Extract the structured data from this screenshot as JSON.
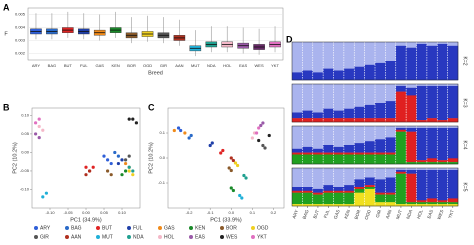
{
  "chart_data": [
    {
      "type": "box",
      "panel_label": "A",
      "x_label": "Breed",
      "y_label": "F",
      "categories": [
        "ARY",
        "BAG",
        "BUT",
        "FUL",
        "GAS",
        "KEN",
        "BOR",
        "OGD",
        "GIR",
        "AAN",
        "MUT",
        "NDA",
        "HOL",
        "EAS",
        "WES",
        "YKT"
      ],
      "colors": [
        "#2f5fd8",
        "#2a6ac8",
        "#e02424",
        "#1f3fa8",
        "#f08a1a",
        "#1a8a2a",
        "#8a5a2a",
        "#f0d020",
        "#555555",
        "#b03020",
        "#20b0d8",
        "#20a090",
        "#f4b8c8",
        "#9a5aa8",
        "#6a2a6a",
        "#e070c0"
      ],
      "whislo": [
        0.0031,
        0.0031,
        0.0032,
        0.0031,
        0.003,
        0.0032,
        0.0028,
        0.0029,
        0.0028,
        0.0026,
        0.0018,
        0.0021,
        0.0021,
        0.002,
        0.0019,
        0.0021
      ],
      "q1": [
        0.0035,
        0.0035,
        0.0036,
        0.0035,
        0.0034,
        0.0036,
        0.0032,
        0.0033,
        0.0032,
        0.003,
        0.0022,
        0.0025,
        0.0025,
        0.0024,
        0.0023,
        0.0025
      ],
      "median": [
        0.0037,
        0.0037,
        0.0038,
        0.0037,
        0.0036,
        0.0038,
        0.0034,
        0.0035,
        0.0034,
        0.0032,
        0.0024,
        0.0027,
        0.0027,
        0.0026,
        0.0025,
        0.0027
      ],
      "q3": [
        0.0039,
        0.0039,
        0.004,
        0.0039,
        0.0038,
        0.004,
        0.0036,
        0.0037,
        0.0036,
        0.0034,
        0.0026,
        0.0029,
        0.0029,
        0.0028,
        0.0027,
        0.0029
      ],
      "whishi": [
        0.0051,
        0.0051,
        0.0052,
        0.0051,
        0.005,
        0.0052,
        0.0048,
        0.0049,
        0.0048,
        0.0046,
        0.0038,
        0.0041,
        0.0041,
        0.004,
        0.0039,
        0.0041
      ],
      "ylim": [
        0.0015,
        0.0055
      ],
      "yticks": [
        0.002,
        0.003,
        0.004,
        0.005
      ],
      "grid": true
    },
    {
      "type": "scatter",
      "panel_label": "B",
      "x_label": "PC1 (34.9%)",
      "y_label": "PC2 (10.2%)",
      "xlim": [
        -0.15,
        0.15
      ],
      "ylim": [
        -0.15,
        0.12
      ],
      "xticks": [
        {
          "value": -0.1,
          "label": "-0.10"
        },
        {
          "value": -0.05,
          "label": "-0.05"
        },
        {
          "value": 0,
          "label": "0.00"
        },
        {
          "value": 0.05,
          "label": "0.05"
        },
        {
          "value": 0.1,
          "label": "0.10"
        }
      ],
      "yticks": [
        {
          "value": -0.1,
          "label": "-0.10"
        },
        {
          "value": -0.05,
          "label": "-0.05"
        },
        {
          "value": 0,
          "label": "0.00"
        },
        {
          "value": 0.05,
          "label": "0.05"
        },
        {
          "value": 0.1,
          "label": "0.10"
        }
      ],
      "series": [
        {
          "name": "ARY",
          "color": "#2f5fd8",
          "x": [
            0.06,
            0.07,
            0.05
          ],
          "y": [
            -0.02,
            -0.03,
            -0.01
          ]
        },
        {
          "name": "BAG",
          "color": "#2a6ac8",
          "x": [
            0.08,
            0.09
          ],
          "y": [
            0,
            -0.01
          ]
        },
        {
          "name": "BUT",
          "color": "#e02424",
          "x": [
            0,
            0.01,
            0.02
          ],
          "y": [
            -0.04,
            -0.05,
            -0.04
          ]
        },
        {
          "name": "FUL",
          "color": "#1f3fa8",
          "x": [
            0.09,
            0.1
          ],
          "y": [
            -0.03,
            -0.02
          ]
        },
        {
          "name": "GAS",
          "color": "#f08a1a",
          "x": [
            0.11,
            0.12
          ],
          "y": [
            -0.03,
            -0.04
          ]
        },
        {
          "name": "KEN",
          "color": "#1a8a2a",
          "x": [
            0.1,
            0.11
          ],
          "y": [
            -0.06,
            -0.05
          ]
        },
        {
          "name": "BOR",
          "color": "#8a5a2a",
          "x": [
            0.06,
            0.07
          ],
          "y": [
            -0.05,
            -0.06
          ]
        },
        {
          "name": "OGD",
          "color": "#f0d020",
          "x": [
            0.12,
            0.13
          ],
          "y": [
            -0.05,
            -0.06
          ]
        },
        {
          "name": "GIR",
          "color": "#555555",
          "x": [
            0.11,
            0.12
          ],
          "y": [
            -0.02,
            -0.01
          ]
        },
        {
          "name": "AAN",
          "color": "#b03020",
          "x": [
            0.01,
            0
          ],
          "y": [
            -0.05,
            -0.06
          ]
        },
        {
          "name": "MUT",
          "color": "#20b0d8",
          "x": [
            -0.12,
            -0.11
          ],
          "y": [
            -0.12,
            -0.11
          ]
        },
        {
          "name": "NDA",
          "color": "#20a090",
          "x": [
            0.12,
            0.13
          ],
          "y": [
            -0.04,
            -0.05
          ]
        },
        {
          "name": "HOL",
          "color": "#f4b8c8",
          "x": [
            -0.13,
            -0.12
          ],
          "y": [
            0.07,
            0.06
          ]
        },
        {
          "name": "EAS",
          "color": "#9a5aa8",
          "x": [
            -0.14,
            -0.13
          ],
          "y": [
            0.05,
            0.04
          ]
        },
        {
          "name": "WES",
          "color": "#222222",
          "x": [
            0.12,
            0.13,
            0.14
          ],
          "y": [
            0.09,
            0.09,
            0.08
          ]
        },
        {
          "name": "YKT",
          "color": "#e070c0",
          "x": [
            -0.14,
            -0.13
          ],
          "y": [
            0.08,
            0.09
          ]
        }
      ]
    },
    {
      "type": "scatter",
      "panel_label": "C",
      "x_label": "PC1 (33.9%)",
      "y_label": "PC2 (10.2%)",
      "xlim": [
        -0.3,
        0.25
      ],
      "ylim": [
        -0.2,
        0.2
      ],
      "xticks": [
        -0.2,
        -0.1,
        {
          "value": 0,
          "label": "0.0"
        },
        0.1,
        0.2
      ],
      "yticks": [
        -0.1,
        {
          "value": 0,
          "label": "0.0"
        },
        0.1
      ],
      "series": [
        {
          "color": "#2f5fd8",
          "x": [
            -0.25,
            -0.24
          ],
          "y": [
            0.12,
            0.11
          ]
        },
        {
          "color": "#2a6ac8",
          "x": [
            -0.2,
            -0.19
          ],
          "y": [
            0.08,
            0.09
          ]
        },
        {
          "color": "#e02424",
          "x": [
            -0.05,
            -0.04
          ],
          "y": [
            0.02,
            0.03
          ]
        },
        {
          "color": "#1f3fa8",
          "x": [
            -0.1,
            -0.09
          ],
          "y": [
            0.05,
            0.06
          ]
        },
        {
          "color": "#f08a1a",
          "x": [
            -0.27,
            -0.22
          ],
          "y": [
            0.11,
            0.1
          ]
        },
        {
          "color": "#1a8a2a",
          "x": [
            0,
            0.01
          ],
          "y": [
            -0.12,
            -0.13
          ]
        },
        {
          "color": "#8a5a2a",
          "x": [
            0,
            -0.01
          ],
          "y": [
            -0.05,
            -0.04
          ]
        },
        {
          "color": "#f0d020",
          "x": [
            0.02,
            0.03
          ],
          "y": [
            -0.02,
            -0.03
          ]
        },
        {
          "color": "#555555",
          "x": [
            0.15,
            0.16
          ],
          "y": [
            0.05,
            0.04
          ]
        },
        {
          "color": "#b03020",
          "x": [
            0,
            0.01
          ],
          "y": [
            0,
            -0.01
          ]
        },
        {
          "color": "#20b0d8",
          "x": [
            0.04,
            0.05
          ],
          "y": [
            -0.15,
            -0.16
          ]
        },
        {
          "color": "#20a090",
          "x": [
            0.06,
            0.07
          ],
          "y": [
            -0.07,
            -0.08
          ]
        },
        {
          "color": "#f4b8c8",
          "x": [
            0.1,
            0.11
          ],
          "y": [
            0.08,
            0.1
          ]
        },
        {
          "color": "#9a5aa8",
          "x": [
            0.14,
            0.15
          ],
          "y": [
            0.13,
            0.14
          ]
        },
        {
          "color": "#222222",
          "x": [
            0.13,
            0.18
          ],
          "y": [
            0.07,
            0.09
          ]
        },
        {
          "color": "#e070c0",
          "x": [
            0.12,
            0.13
          ],
          "y": [
            0.1,
            0.12
          ]
        }
      ]
    },
    {
      "type": "stacked_bar",
      "panel_label": "D",
      "categories": [
        "ARY",
        "BAG",
        "BUT",
        "FUL",
        "GAS",
        "KEN",
        "BOR",
        "OGD",
        "GIR",
        "AAN",
        "MUT",
        "NDA",
        "HOL",
        "EAS",
        "WES",
        "YKT"
      ],
      "panels": [
        {
          "label": "K=2",
          "series": [
            {
              "color": "#aab4ee",
              "values": [
                0.8,
                0.75,
                0.8,
                0.7,
                0.75,
                0.7,
                0.65,
                0.6,
                0.55,
                0.5,
                0.1,
                0.15,
                0.05,
                0.1,
                0.05,
                0.1
              ]
            },
            {
              "color": "#2838c0",
              "values": [
                0.2,
                0.25,
                0.2,
                0.3,
                0.25,
                0.3,
                0.35,
                0.4,
                0.45,
                0.5,
                0.9,
                0.85,
                0.95,
                0.9,
                0.95,
                0.9
              ]
            }
          ]
        },
        {
          "label": "K=3",
          "series": [
            {
              "color": "#aab4ee",
              "values": [
                0.75,
                0.7,
                0.75,
                0.65,
                0.7,
                0.65,
                0.6,
                0.55,
                0.5,
                0.45,
                0.05,
                0.1,
                0.05,
                0.05,
                0.05,
                0.05
              ]
            },
            {
              "color": "#2838c0",
              "values": [
                0.15,
                0.2,
                0.15,
                0.25,
                0.2,
                0.25,
                0.3,
                0.35,
                0.4,
                0.45,
                0.15,
                0.2,
                0.9,
                0.85,
                0.9,
                0.85
              ]
            },
            {
              "color": "#e02020",
              "values": [
                0.1,
                0.1,
                0.1,
                0.1,
                0.1,
                0.1,
                0.1,
                0.1,
                0.1,
                0.1,
                0.8,
                0.7,
                0.05,
                0.1,
                0.05,
                0.1
              ]
            }
          ]
        },
        {
          "label": "K=4",
          "series": [
            {
              "color": "#aab4ee",
              "values": [
                0.6,
                0.55,
                0.6,
                0.5,
                0.55,
                0.5,
                0.45,
                0.4,
                0.35,
                0.3,
                0.05,
                0.05,
                0.05,
                0.05,
                0.05,
                0.05
              ]
            },
            {
              "color": "#2838c0",
              "values": [
                0.1,
                0.15,
                0.1,
                0.2,
                0.15,
                0.2,
                0.25,
                0.3,
                0.35,
                0.4,
                0.05,
                0.1,
                0.85,
                0.8,
                0.85,
                0.8
              ]
            },
            {
              "color": "#e02020",
              "values": [
                0.05,
                0.05,
                0.05,
                0.05,
                0.05,
                0.05,
                0.05,
                0.05,
                0.05,
                0.05,
                0.05,
                0.8,
                0.05,
                0.1,
                0.05,
                0.1
              ]
            },
            {
              "color": "#20a020",
              "values": [
                0.25,
                0.25,
                0.25,
                0.25,
                0.25,
                0.25,
                0.25,
                0.25,
                0.25,
                0.25,
                0.85,
                0.05,
                0.05,
                0.05,
                0.05,
                0.05
              ]
            }
          ]
        },
        {
          "label": "K=5",
          "series": [
            {
              "color": "#aab4ee",
              "values": [
                0.5,
                0.5,
                0.55,
                0.45,
                0.5,
                0.45,
                0.3,
                0.25,
                0.3,
                0.25,
                0.05,
                0.05,
                0.05,
                0.05,
                0.05,
                0.05
              ]
            },
            {
              "color": "#2838c0",
              "values": [
                0.1,
                0.1,
                0.1,
                0.15,
                0.1,
                0.15,
                0.2,
                0.2,
                0.35,
                0.4,
                0.05,
                0.1,
                0.8,
                0.75,
                0.8,
                0.75
              ]
            },
            {
              "color": "#e02020",
              "values": [
                0.05,
                0.05,
                0.05,
                0.05,
                0.05,
                0.05,
                0.05,
                0.05,
                0.05,
                0.05,
                0.05,
                0.75,
                0.05,
                0.1,
                0.05,
                0.1
              ]
            },
            {
              "color": "#20a020",
              "values": [
                0.3,
                0.3,
                0.25,
                0.3,
                0.3,
                0.3,
                0.1,
                0.05,
                0.2,
                0.2,
                0.8,
                0.05,
                0.05,
                0.05,
                0.05,
                0.05
              ]
            },
            {
              "color": "#f0e020",
              "values": [
                0.05,
                0.05,
                0.05,
                0.05,
                0.05,
                0.05,
                0.35,
                0.45,
                0.1,
                0.1,
                0.05,
                0.05,
                0.05,
                0.05,
                0.05,
                0.05
              ]
            }
          ]
        }
      ]
    }
  ]
}
